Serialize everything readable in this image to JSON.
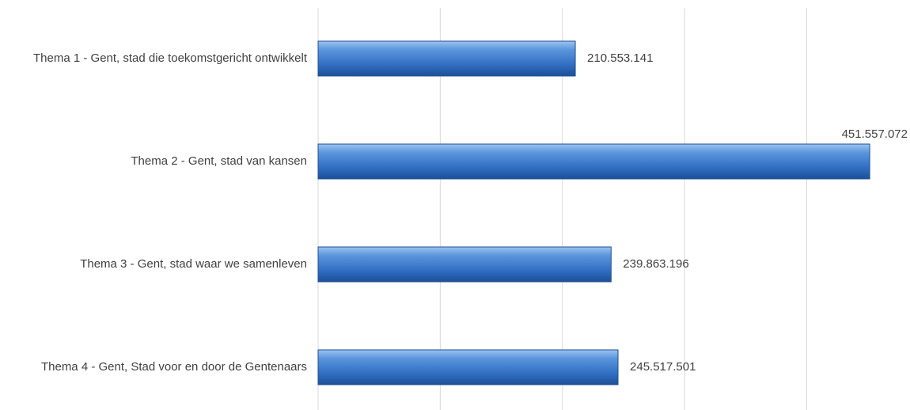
{
  "chart_data": {
    "type": "bar",
    "orientation": "horizontal",
    "categories": [
      "Thema 1 -  Gent, stad die toekomstgericht ontwikkelt",
      "Thema 2 -  Gent, stad van kansen",
      "Thema 3 -  Gent, stad waar we samenleven",
      "Thema 4 -  Gent, Stad voor en door de Gentenaars"
    ],
    "values": [
      210553141,
      451557072,
      239863196,
      245517501
    ],
    "value_labels": [
      "210.553.141",
      "451.557.072",
      "239.863.196",
      "245.517.501"
    ],
    "color": "#3a78c8",
    "xlim": [
      0,
      480000000
    ],
    "xticks": [
      0,
      100000000,
      200000000,
      300000000,
      400000000
    ],
    "grid": true
  }
}
